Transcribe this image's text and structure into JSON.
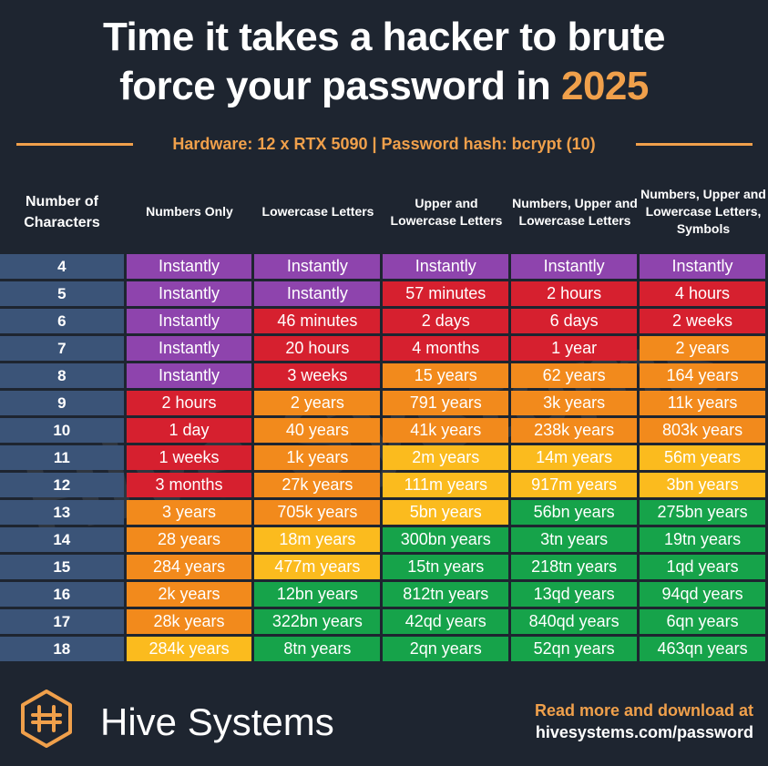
{
  "title": {
    "line1": "Time it takes a hacker to brute",
    "line2_main": "force your password in ",
    "line2_accent": "2025"
  },
  "subtitle": "Hardware: 12 x RTX 5090 | Password hash: bcrypt (10)",
  "colors": {
    "background": "#1e2530",
    "accent": "#f0a04b",
    "row_label": "#3b5478",
    "instantly": "#8e44ad",
    "hours_days": "#d6202f",
    "years_short": "#f28a1c",
    "years_mid": "#fbbb1e",
    "years_long": "#16a34a"
  },
  "chart_data": {
    "type": "table",
    "row_header": "Number of Characters",
    "columns": [
      "Numbers Only",
      "Lowercase Letters",
      "Upper and Lowercase Letters",
      "Numbers, Upper and Lowercase Letters",
      "Numbers, Upper and Lowercase Letters, Symbols"
    ],
    "rows": [
      {
        "chars": "4",
        "values": [
          "Instantly",
          "Instantly",
          "Instantly",
          "Instantly",
          "Instantly"
        ],
        "colors": [
          "instantly",
          "instantly",
          "instantly",
          "instantly",
          "instantly"
        ]
      },
      {
        "chars": "5",
        "values": [
          "Instantly",
          "Instantly",
          "57 minutes",
          "2 hours",
          "4 hours"
        ],
        "colors": [
          "instantly",
          "instantly",
          "hours_days",
          "hours_days",
          "hours_days"
        ]
      },
      {
        "chars": "6",
        "values": [
          "Instantly",
          "46 minutes",
          "2 days",
          "6 days",
          "2 weeks"
        ],
        "colors": [
          "instantly",
          "hours_days",
          "hours_days",
          "hours_days",
          "hours_days"
        ]
      },
      {
        "chars": "7",
        "values": [
          "Instantly",
          "20 hours",
          "4 months",
          "1 year",
          "2 years"
        ],
        "colors": [
          "instantly",
          "hours_days",
          "hours_days",
          "hours_days",
          "years_short"
        ]
      },
      {
        "chars": "8",
        "values": [
          "Instantly",
          "3 weeks",
          "15 years",
          "62 years",
          "164 years"
        ],
        "colors": [
          "instantly",
          "hours_days",
          "years_short",
          "years_short",
          "years_short"
        ]
      },
      {
        "chars": "9",
        "values": [
          "2 hours",
          "2 years",
          "791 years",
          "3k years",
          "11k years"
        ],
        "colors": [
          "hours_days",
          "years_short",
          "years_short",
          "years_short",
          "years_short"
        ]
      },
      {
        "chars": "10",
        "values": [
          "1 day",
          "40 years",
          "41k years",
          "238k years",
          "803k years"
        ],
        "colors": [
          "hours_days",
          "years_short",
          "years_short",
          "years_short",
          "years_short"
        ]
      },
      {
        "chars": "11",
        "values": [
          "1 weeks",
          "1k years",
          "2m years",
          "14m years",
          "56m years"
        ],
        "colors": [
          "hours_days",
          "years_short",
          "years_mid",
          "years_mid",
          "years_mid"
        ]
      },
      {
        "chars": "12",
        "values": [
          "3 months",
          "27k years",
          "111m years",
          "917m years",
          "3bn years"
        ],
        "colors": [
          "hours_days",
          "years_short",
          "years_mid",
          "years_mid",
          "years_mid"
        ]
      },
      {
        "chars": "13",
        "values": [
          "3 years",
          "705k years",
          "5bn years",
          "56bn years",
          "275bn years"
        ],
        "colors": [
          "years_short",
          "years_short",
          "years_mid",
          "years_long",
          "years_long"
        ]
      },
      {
        "chars": "14",
        "values": [
          "28 years",
          "18m years",
          "300bn years",
          "3tn years",
          "19tn years"
        ],
        "colors": [
          "years_short",
          "years_mid",
          "years_long",
          "years_long",
          "years_long"
        ]
      },
      {
        "chars": "15",
        "values": [
          "284 years",
          "477m years",
          "15tn years",
          "218tn years",
          "1qd years"
        ],
        "colors": [
          "years_short",
          "years_mid",
          "years_long",
          "years_long",
          "years_long"
        ]
      },
      {
        "chars": "16",
        "values": [
          "2k years",
          "12bn years",
          "812tn years",
          "13qd years",
          "94qd years"
        ],
        "colors": [
          "years_short",
          "years_long",
          "years_long",
          "years_long",
          "years_long"
        ]
      },
      {
        "chars": "17",
        "values": [
          "28k years",
          "322bn years",
          "42qd years",
          "840qd years",
          "6qn years"
        ],
        "colors": [
          "years_short",
          "years_long",
          "years_long",
          "years_long",
          "years_long"
        ]
      },
      {
        "chars": "18",
        "values": [
          "284k years",
          "8tn years",
          "2qn years",
          "52qn years",
          "463qn years"
        ],
        "colors": [
          "years_mid",
          "years_long",
          "years_long",
          "years_long",
          "years_long"
        ]
      }
    ]
  },
  "footer": {
    "brand": "Hive Systems",
    "read_more": "Read more and download at",
    "url": "hivesystems.com/password",
    "logo_icon": "hive-logo-icon"
  },
  "watermark": "Hive Systems"
}
